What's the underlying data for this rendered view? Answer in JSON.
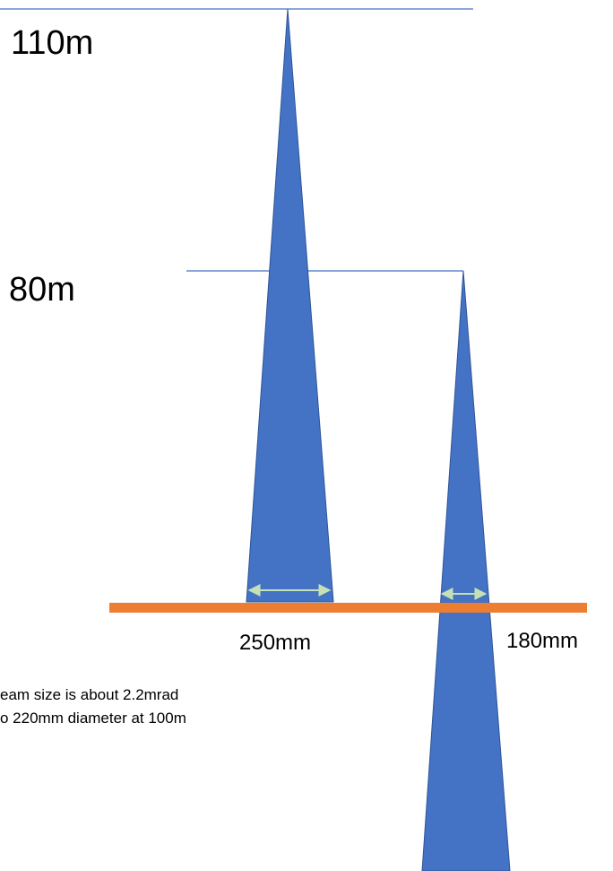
{
  "diagram": {
    "colors": {
      "beam": "#4472c4",
      "beam_outline": "#2f5597",
      "ground": "#ed7d31",
      "height_line": "#4472c4",
      "arrow": "#c5e0b4"
    },
    "heights": {
      "high_label": "110m",
      "low_label": "80m"
    },
    "widths": {
      "left_label": "250mm",
      "right_label": "180mm"
    },
    "note": {
      "line1": "eam size is about  2.2mrad",
      "line2": "o 220mm diameter at 100m"
    }
  }
}
